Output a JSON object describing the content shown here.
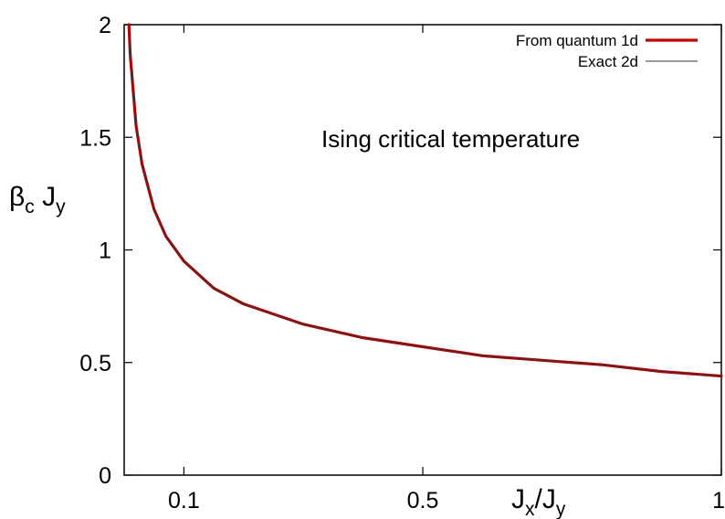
{
  "chart_data": {
    "type": "line",
    "annotation": "Ising critical temperature",
    "xlabel": {
      "base": "J",
      "sub": "x",
      "mid": "/J",
      "sub2": "y"
    },
    "ylabel": {
      "greek": "β",
      "sub": "c",
      "mid": " J",
      "sub2": "y"
    },
    "xlim": [
      0.0,
      1.0
    ],
    "ylim": [
      0.0,
      2.0
    ],
    "xticks": [
      {
        "value": 0.1,
        "label": "0.1"
      },
      {
        "value": 0.5,
        "label": "0.5"
      },
      {
        "value": 1.0,
        "label": "1"
      }
    ],
    "yticks": [
      {
        "value": 0.0,
        "label": "0"
      },
      {
        "value": 0.5,
        "label": "0.5"
      },
      {
        "value": 1.0,
        "label": "1"
      },
      {
        "value": 1.5,
        "label": "1.5"
      },
      {
        "value": 2.0,
        "label": "2"
      }
    ],
    "x": [
      0.008,
      0.01,
      0.02,
      0.03,
      0.05,
      0.07,
      0.1,
      0.15,
      0.2,
      0.3,
      0.4,
      0.5,
      0.6,
      0.7,
      0.8,
      0.9,
      1.0
    ],
    "series": [
      {
        "name": "From quantum 1d",
        "color": "#c00000",
        "values": [
          2.0,
          1.87,
          1.55,
          1.38,
          1.18,
          1.06,
          0.95,
          0.83,
          0.76,
          0.67,
          0.61,
          0.57,
          0.53,
          0.51,
          0.49,
          0.46,
          0.44
        ]
      },
      {
        "name": "Exact 2d",
        "color": "#333333",
        "values": [
          2.0,
          1.87,
          1.55,
          1.38,
          1.18,
          1.06,
          0.95,
          0.83,
          0.76,
          0.67,
          0.61,
          0.57,
          0.53,
          0.51,
          0.49,
          0.46,
          0.44
        ]
      }
    ],
    "grid": false,
    "legend_position": "top-right"
  }
}
